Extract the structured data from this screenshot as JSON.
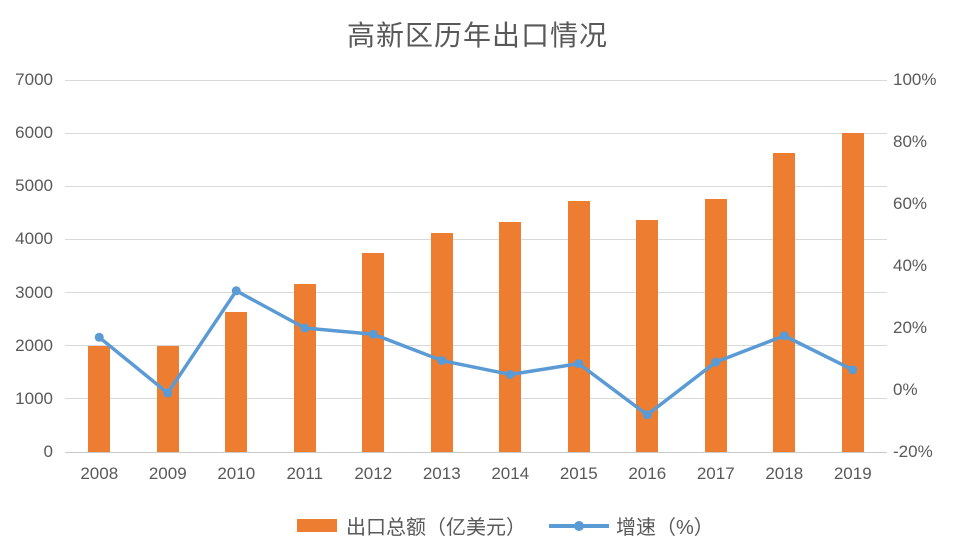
{
  "chart_data": {
    "type": "combo-bar-line",
    "title": "高新区历年出口情况",
    "categories": [
      "2008",
      "2009",
      "2010",
      "2011",
      "2012",
      "2013",
      "2014",
      "2015",
      "2016",
      "2017",
      "2018",
      "2019"
    ],
    "series": [
      {
        "name": "出口总额（亿美元）",
        "type": "bar",
        "axis": "left",
        "color": "#ED7D31",
        "values": [
          2000,
          2000,
          2630,
          3170,
          3750,
          4130,
          4330,
          4730,
          4370,
          4760,
          5630,
          6000
        ]
      },
      {
        "name": "增速（%）",
        "type": "line",
        "axis": "right",
        "color": "#5B9BD5",
        "values": [
          17,
          -1,
          32,
          20,
          18,
          9.5,
          5,
          8.5,
          -8,
          9,
          17.5,
          6.5
        ]
      }
    ],
    "left_axis": {
      "min": 0,
      "max": 7000,
      "step": 1000,
      "tick_labels": [
        "0",
        "1000",
        "2000",
        "3000",
        "4000",
        "5000",
        "6000",
        "7000"
      ]
    },
    "right_axis": {
      "min": -20,
      "max": 100,
      "step": 20,
      "suffix": "%",
      "tick_labels": [
        "-20%",
        "0%",
        "20%",
        "40%",
        "60%",
        "80%",
        "100%"
      ]
    },
    "grid": true,
    "legend_position": "bottom",
    "colors": {
      "bar": "#ED7D31",
      "line": "#5B9BD5",
      "text": "#595959",
      "gridline": "#d9d9d9",
      "background": "#ffffff"
    }
  }
}
